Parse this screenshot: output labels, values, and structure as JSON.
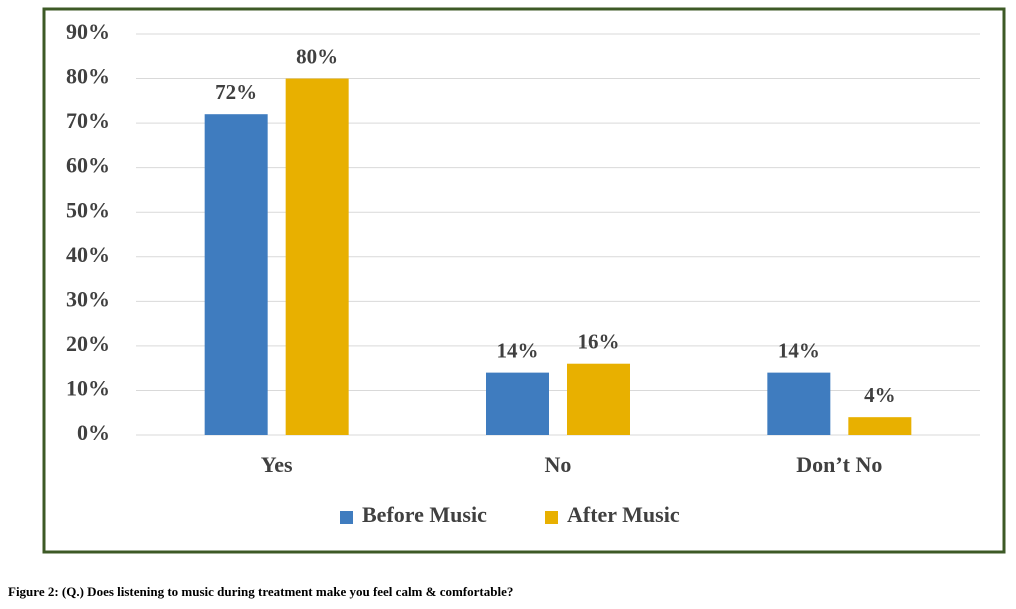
{
  "chart_data": {
    "type": "bar",
    "caption": "Figure 2: (Q.) Does listening to music during treatment make you feel calm & comfortable?",
    "categories": [
      "Yes",
      "No",
      "Don’t No"
    ],
    "series": [
      {
        "name": "Before Music",
        "color": "#3f7cbf",
        "values": [
          72,
          14,
          14
        ],
        "value_labels": [
          "72%",
          "14%",
          "14%"
        ]
      },
      {
        "name": "After Music",
        "color": "#e8b000",
        "values": [
          80,
          16,
          4
        ],
        "value_labels": [
          "80%",
          "16%",
          "4%"
        ]
      }
    ],
    "ylim": [
      0,
      90
    ],
    "yticks": [
      {
        "value": 0,
        "label": "0%"
      },
      {
        "value": 10,
        "label": "10%"
      },
      {
        "value": 20,
        "label": "20%"
      },
      {
        "value": 30,
        "label": "30%"
      },
      {
        "value": 40,
        "label": "40%"
      },
      {
        "value": 50,
        "label": "50%"
      },
      {
        "value": 60,
        "label": "60%"
      },
      {
        "value": 70,
        "label": "70%"
      },
      {
        "value": 80,
        "label": "80%"
      },
      {
        "value": 90,
        "label": "90%"
      }
    ],
    "grid": true,
    "legend": "bottom"
  }
}
